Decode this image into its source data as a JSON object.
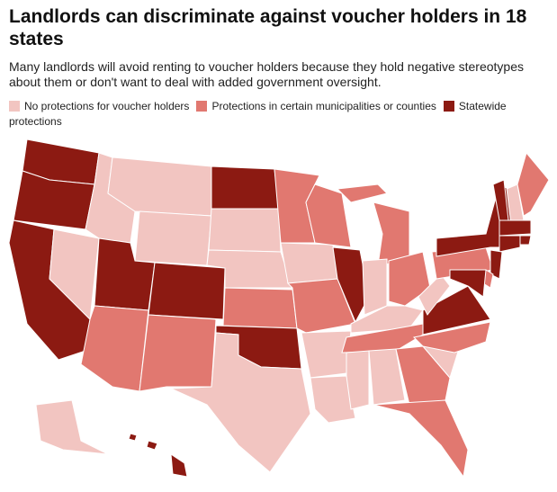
{
  "header": {
    "title": "Landlords can discriminate against voucher holders in 18 states",
    "subtitle": "Many landlords will avoid renting to voucher holders because they hold negative stereotypes about them or don't want to deal with added government oversight."
  },
  "legend": [
    {
      "label": "No protections for voucher holders",
      "color": "#f2c5c1"
    },
    {
      "label": "Protections in certain municipalities or counties",
      "color": "#e17870"
    },
    {
      "label": "Statewide protections",
      "color": "#8c1a12"
    }
  ]
}
